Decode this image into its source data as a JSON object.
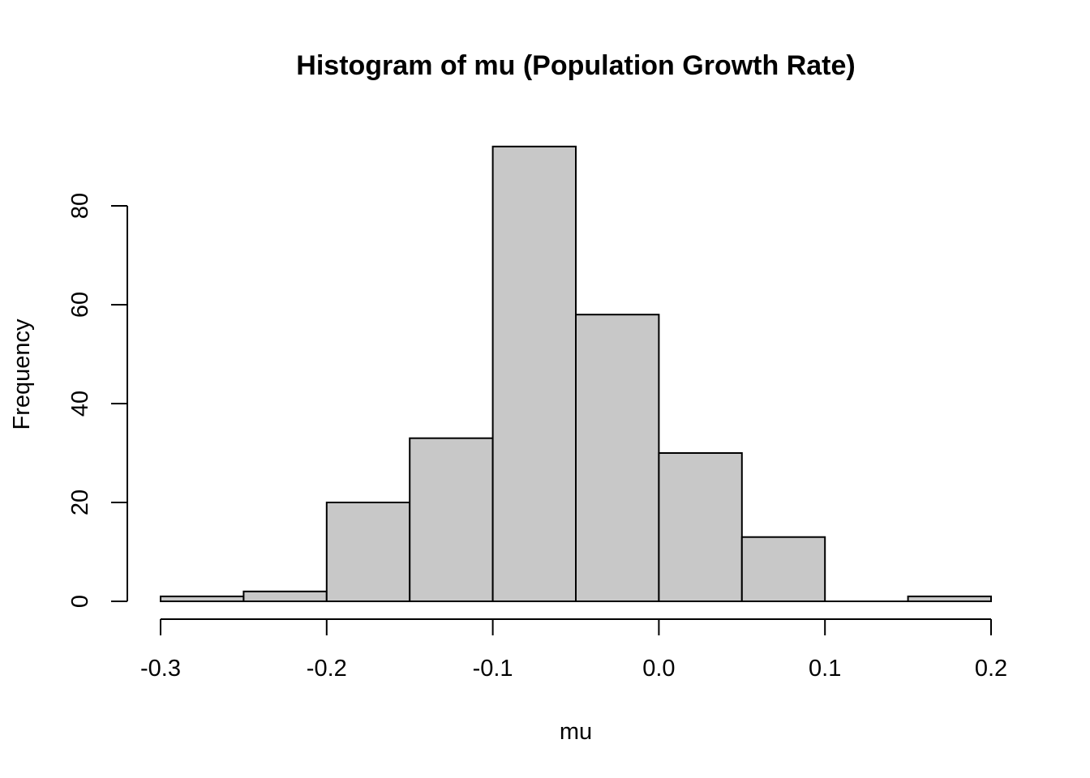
{
  "chart_data": {
    "type": "bar",
    "title": "Histogram of mu (Population Growth Rate)",
    "xlabel": "mu",
    "ylabel": "Frequency",
    "bin_edges": [
      -0.3,
      -0.25,
      -0.2,
      -0.15,
      -0.1,
      -0.05,
      0.0,
      0.05,
      0.1,
      0.15,
      0.2
    ],
    "values": [
      1,
      2,
      20,
      33,
      92,
      58,
      30,
      13,
      0,
      1
    ],
    "xlim": [
      -0.3,
      0.2
    ],
    "ylim": [
      0,
      80
    ],
    "x_ticks": [
      {
        "value": -0.3,
        "label": "-0.3"
      },
      {
        "value": -0.2,
        "label": "-0.2"
      },
      {
        "value": -0.1,
        "label": "-0.1"
      },
      {
        "value": 0.0,
        "label": "0.0"
      },
      {
        "value": 0.1,
        "label": "0.1"
      },
      {
        "value": 0.2,
        "label": "0.2"
      }
    ],
    "y_ticks": [
      {
        "value": 0,
        "label": "0"
      },
      {
        "value": 20,
        "label": "20"
      },
      {
        "value": 40,
        "label": "40"
      },
      {
        "value": 60,
        "label": "60"
      },
      {
        "value": 80,
        "label": "80"
      }
    ],
    "bar_color": "#c8c8c8",
    "grid": false,
    "legend": "none"
  }
}
